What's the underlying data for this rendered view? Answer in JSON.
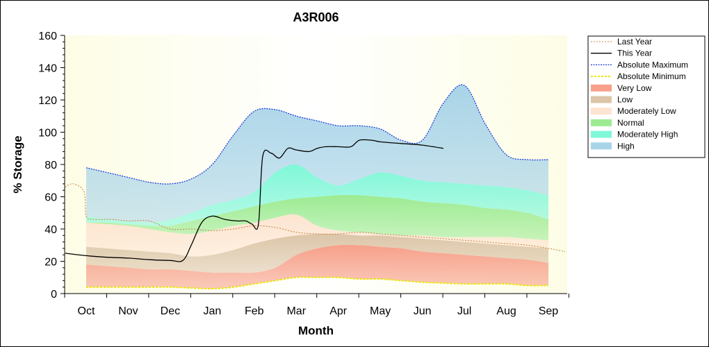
{
  "chart_data": {
    "type": "area",
    "title": "A3R006",
    "xlabel": "Month",
    "ylabel": "% Storage",
    "ylim": [
      0,
      160
    ],
    "yticks": [
      0,
      20,
      40,
      60,
      80,
      100,
      120,
      140,
      160
    ],
    "categories": [
      "Oct",
      "Nov",
      "Dec",
      "Jan",
      "Feb",
      "Mar",
      "Apr",
      "May",
      "Jun",
      "Jul",
      "Aug",
      "Sep"
    ],
    "grid": false,
    "legend_position": "right",
    "colors": {
      "plot_background": "#fdfde6",
      "very_low": "#f7a08a",
      "low": "#dcc5a8",
      "moderately_low": "#fde4d0",
      "normal": "#9ceb92",
      "moderately_high": "#7ff7d8",
      "high": "#a9d4e8",
      "this_year": "#000000",
      "last_year": "#c0803a",
      "abs_max": "#1a3cd8",
      "abs_min": "#e8e800"
    },
    "series": [
      {
        "name": "Last Year",
        "style": "dotted-line",
        "x": [
          -0.5,
          -0.3,
          -0.05,
          0,
          0.2,
          0.6,
          1,
          1.5,
          2,
          2.5,
          3,
          3.5,
          4,
          4.5,
          5,
          5.5,
          6,
          6.5,
          7,
          7.5,
          8,
          8.5,
          9,
          9.5,
          10,
          10.5,
          11,
          11.4
        ],
        "values": [
          66,
          68,
          63,
          48,
          46,
          46,
          45,
          45,
          40,
          40,
          39,
          40,
          42,
          41,
          38,
          37,
          37,
          38,
          37,
          36,
          35,
          34,
          33,
          32,
          31,
          30,
          28,
          26
        ]
      },
      {
        "name": "This Year",
        "style": "line",
        "x": [
          -0.5,
          0,
          0.5,
          1,
          1.5,
          2,
          2.3,
          2.5,
          2.75,
          3,
          3.3,
          3.6,
          3.8,
          3.95,
          4.1,
          4.2,
          4.4,
          4.6,
          4.8,
          5,
          5.3,
          5.5,
          5.7,
          6,
          6.3,
          6.5,
          6.8,
          7,
          7.5,
          8,
          8.5
        ],
        "values": [
          25,
          23.5,
          22.5,
          22,
          21,
          20.5,
          20.5,
          30,
          44,
          48,
          46,
          45,
          45,
          43,
          43,
          85,
          87,
          84,
          90,
          89,
          88,
          90,
          91,
          91,
          91,
          95,
          95,
          94,
          93,
          92,
          90
        ]
      },
      {
        "name": "Absolute Maximum",
        "style": "dotted-line",
        "x": [
          0,
          0.5,
          1,
          1.5,
          2,
          2.5,
          3,
          3.5,
          4,
          4.5,
          5,
          5.5,
          6,
          6.5,
          7,
          7.5,
          8,
          8.5,
          9,
          9.5,
          10,
          10.5,
          11
        ],
        "values": [
          78,
          75,
          72,
          69,
          68,
          71,
          80,
          98,
          113,
          114,
          110,
          107,
          104,
          104,
          102,
          95,
          95,
          118,
          129,
          105,
          86,
          83,
          83
        ]
      },
      {
        "name": "Absolute Minimum",
        "style": "dotted-line",
        "x": [
          0,
          0.5,
          1,
          1.5,
          2,
          2.5,
          3,
          3.5,
          4,
          4.5,
          5,
          5.5,
          6,
          6.5,
          7,
          7.5,
          8,
          8.5,
          9,
          9.5,
          10,
          10.5,
          11
        ],
        "values": [
          4,
          4,
          4,
          4,
          4,
          3.5,
          3,
          4,
          6,
          8,
          10,
          10,
          10,
          9,
          9,
          8,
          7,
          6.5,
          6,
          6,
          6,
          5,
          5
        ]
      },
      {
        "name": "Very Low",
        "style": "band",
        "x": [
          0,
          0.5,
          1,
          1.5,
          2,
          2.5,
          3,
          3.5,
          4,
          4.5,
          5,
          5.5,
          6,
          6.5,
          7,
          7.5,
          8,
          8.5,
          9,
          9.5,
          10,
          10.5,
          11
        ],
        "lower": [
          4,
          4,
          4,
          4,
          4,
          3.5,
          3,
          4,
          6,
          8,
          10,
          10,
          10,
          9,
          9,
          8,
          7,
          6.5,
          6,
          6,
          6,
          5,
          5
        ],
        "upper": [
          18,
          17,
          16,
          15,
          15,
          14,
          13,
          13,
          13,
          16,
          24,
          28,
          30,
          30,
          29,
          28,
          26,
          25,
          24,
          23,
          22,
          21,
          19
        ]
      },
      {
        "name": "Low",
        "style": "band",
        "x": [
          0,
          0.5,
          1,
          1.5,
          2,
          2.5,
          3,
          3.5,
          4,
          4.5,
          5,
          5.5,
          6,
          6.5,
          7,
          7.5,
          8,
          8.5,
          9,
          9.5,
          10,
          10.5,
          11
        ],
        "lower": [
          18,
          17,
          16,
          15,
          15,
          14,
          13,
          13,
          13,
          16,
          24,
          28,
          30,
          30,
          29,
          28,
          26,
          25,
          24,
          23,
          22,
          21,
          19
        ],
        "upper": [
          29,
          28,
          27,
          26,
          25,
          23,
          24,
          27,
          31,
          34,
          36,
          37,
          37,
          36,
          36,
          35,
          34,
          33,
          32,
          31,
          30,
          29,
          28
        ]
      },
      {
        "name": "Moderately Low",
        "style": "band",
        "x": [
          0,
          0.5,
          1,
          1.5,
          2,
          2.5,
          3,
          3.5,
          4,
          4.5,
          5,
          5.5,
          6,
          6.5,
          7,
          7.5,
          8,
          8.5,
          9,
          9.5,
          10,
          10.5,
          11
        ],
        "lower": [
          29,
          28,
          27,
          26,
          25,
          23,
          24,
          27,
          31,
          34,
          36,
          37,
          37,
          36,
          36,
          35,
          34,
          33,
          32,
          31,
          30,
          29,
          28
        ],
        "upper": [
          44,
          43,
          42,
          40,
          38,
          37,
          39,
          42,
          44,
          47,
          49,
          42,
          39,
          38,
          37,
          36,
          36,
          35,
          35,
          35,
          35,
          34,
          33
        ]
      },
      {
        "name": "Normal",
        "style": "band",
        "x": [
          0,
          0.5,
          1,
          1.5,
          2,
          2.5,
          3,
          3.5,
          4,
          4.5,
          5,
          5.5,
          6,
          6.5,
          7,
          7.5,
          8,
          8.5,
          9,
          9.5,
          10,
          10.5,
          11
        ],
        "lower": [
          44,
          43,
          42,
          40,
          38,
          37,
          39,
          42,
          44,
          47,
          49,
          42,
          39,
          38,
          37,
          36,
          36,
          35,
          35,
          35,
          35,
          34,
          33
        ],
        "upper": [
          44,
          44,
          43,
          42,
          42,
          45,
          48,
          51,
          54,
          57,
          59,
          60,
          61,
          61,
          60,
          59,
          57,
          56,
          55,
          53,
          52,
          50,
          46
        ]
      },
      {
        "name": "Moderately High",
        "style": "band",
        "x": [
          0,
          0.5,
          1,
          1.5,
          2,
          2.5,
          3,
          3.5,
          4,
          4.5,
          5,
          5.5,
          6,
          6.5,
          7,
          7.5,
          8,
          8.5,
          9,
          9.5,
          10,
          10.5,
          11
        ],
        "lower": [
          44,
          44,
          43,
          42,
          42,
          45,
          48,
          51,
          54,
          57,
          59,
          60,
          61,
          61,
          60,
          59,
          57,
          56,
          55,
          53,
          52,
          50,
          46
        ],
        "upper": [
          48,
          46,
          45,
          44,
          46,
          50,
          55,
          58,
          63,
          75,
          80,
          72,
          67,
          71,
          75,
          73,
          70,
          69,
          68,
          67,
          66,
          64,
          61
        ]
      },
      {
        "name": "High",
        "style": "band",
        "x": [
          0,
          0.5,
          1,
          1.5,
          2,
          2.5,
          3,
          3.5,
          4,
          4.5,
          5,
          5.5,
          6,
          6.5,
          7,
          7.5,
          8,
          8.5,
          9,
          9.5,
          10,
          10.5,
          11
        ],
        "lower": [
          48,
          46,
          45,
          44,
          46,
          50,
          55,
          58,
          63,
          75,
          80,
          72,
          67,
          71,
          75,
          73,
          70,
          69,
          68,
          67,
          66,
          64,
          61
        ],
        "upper": [
          78,
          75,
          72,
          69,
          68,
          71,
          80,
          98,
          113,
          114,
          110,
          107,
          104,
          104,
          102,
          95,
          95,
          118,
          129,
          105,
          86,
          83,
          83
        ]
      }
    ]
  }
}
